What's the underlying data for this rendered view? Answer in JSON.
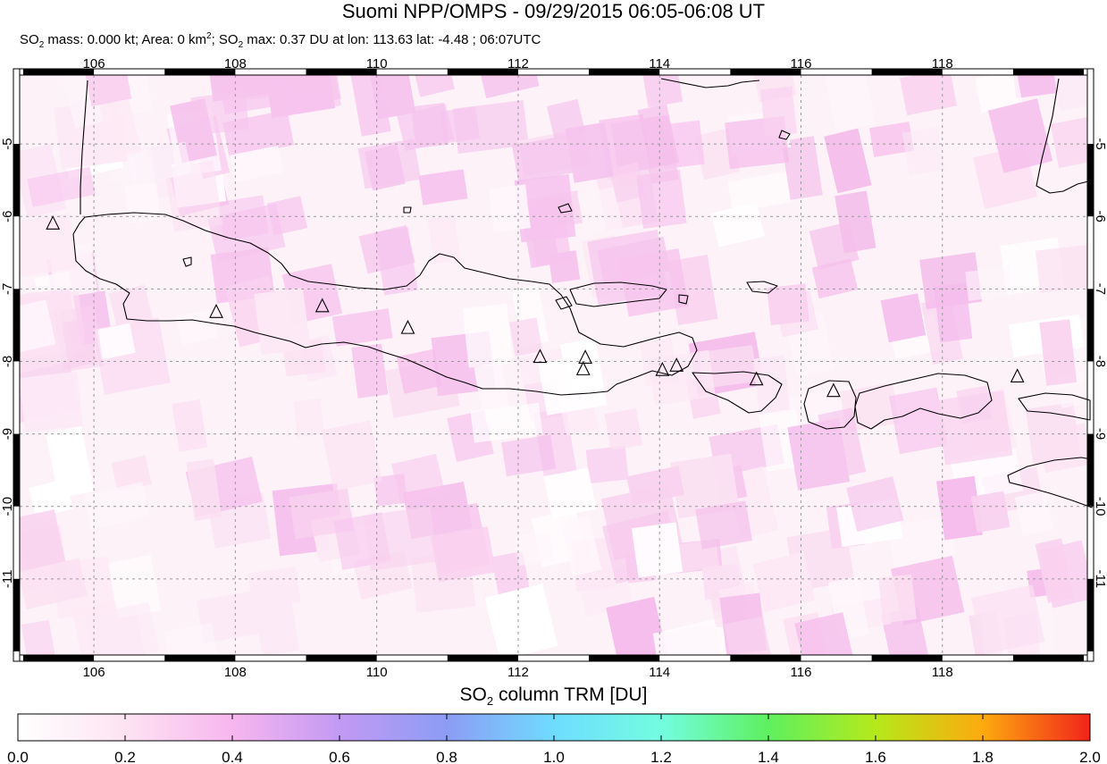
{
  "title": "Suomi NPP/OMPS - 09/29/2015 06:05-06:08 UT",
  "subtitle": {
    "part1": "SO",
    "sub1": "2",
    "part2": " mass: 0.000 kt; Area: 0 km",
    "sup": "2",
    "part3": "; SO",
    "sub2": "2",
    "part4": " max: 0.37 DU at lon: 113.63 lat: -4.48 ; 06:07UTC"
  },
  "map": {
    "lon_ticks": [
      "106",
      "108",
      "110",
      "112",
      "114",
      "116",
      "118"
    ],
    "lat_ticks": [
      "-5",
      "-6",
      "-7",
      "-8",
      "-9",
      "-10",
      "-11"
    ],
    "lon_range": [
      104.95,
      120.05
    ],
    "lat_range": [
      -12.05,
      -4.05
    ],
    "grid": "dashed",
    "volcano_icon": "triangle-icon",
    "volcanoes": [
      {
        "lon": 105.42,
        "lat": -6.1
      },
      {
        "lon": 107.73,
        "lat": -7.32
      },
      {
        "lon": 109.23,
        "lat": -7.24
      },
      {
        "lon": 110.44,
        "lat": -7.54
      },
      {
        "lon": 112.31,
        "lat": -7.94
      },
      {
        "lon": 112.95,
        "lat": -7.95
      },
      {
        "lon": 112.92,
        "lat": -8.11
      },
      {
        "lon": 114.04,
        "lat": -8.12
      },
      {
        "lon": 114.24,
        "lat": -8.06
      },
      {
        "lon": 115.37,
        "lat": -8.25
      },
      {
        "lon": 116.46,
        "lat": -8.41
      },
      {
        "lon": 119.06,
        "lat": -8.21
      }
    ]
  },
  "colorbar": {
    "title_a": "SO",
    "title_sub": "2",
    "title_b": " column TRM [DU]",
    "ticks": [
      "0.0",
      "0.2",
      "0.4",
      "0.6",
      "0.8",
      "1.0",
      "1.2",
      "1.4",
      "1.6",
      "1.8",
      "2.0"
    ],
    "colors": [
      "#ffffff",
      "#fde3f2",
      "#f7b6ee",
      "#c29af4",
      "#8c9cf4",
      "#6fdcff",
      "#73fde0",
      "#5ef05f",
      "#b5e91b",
      "#fdaa0e",
      "#f2231a"
    ]
  }
}
